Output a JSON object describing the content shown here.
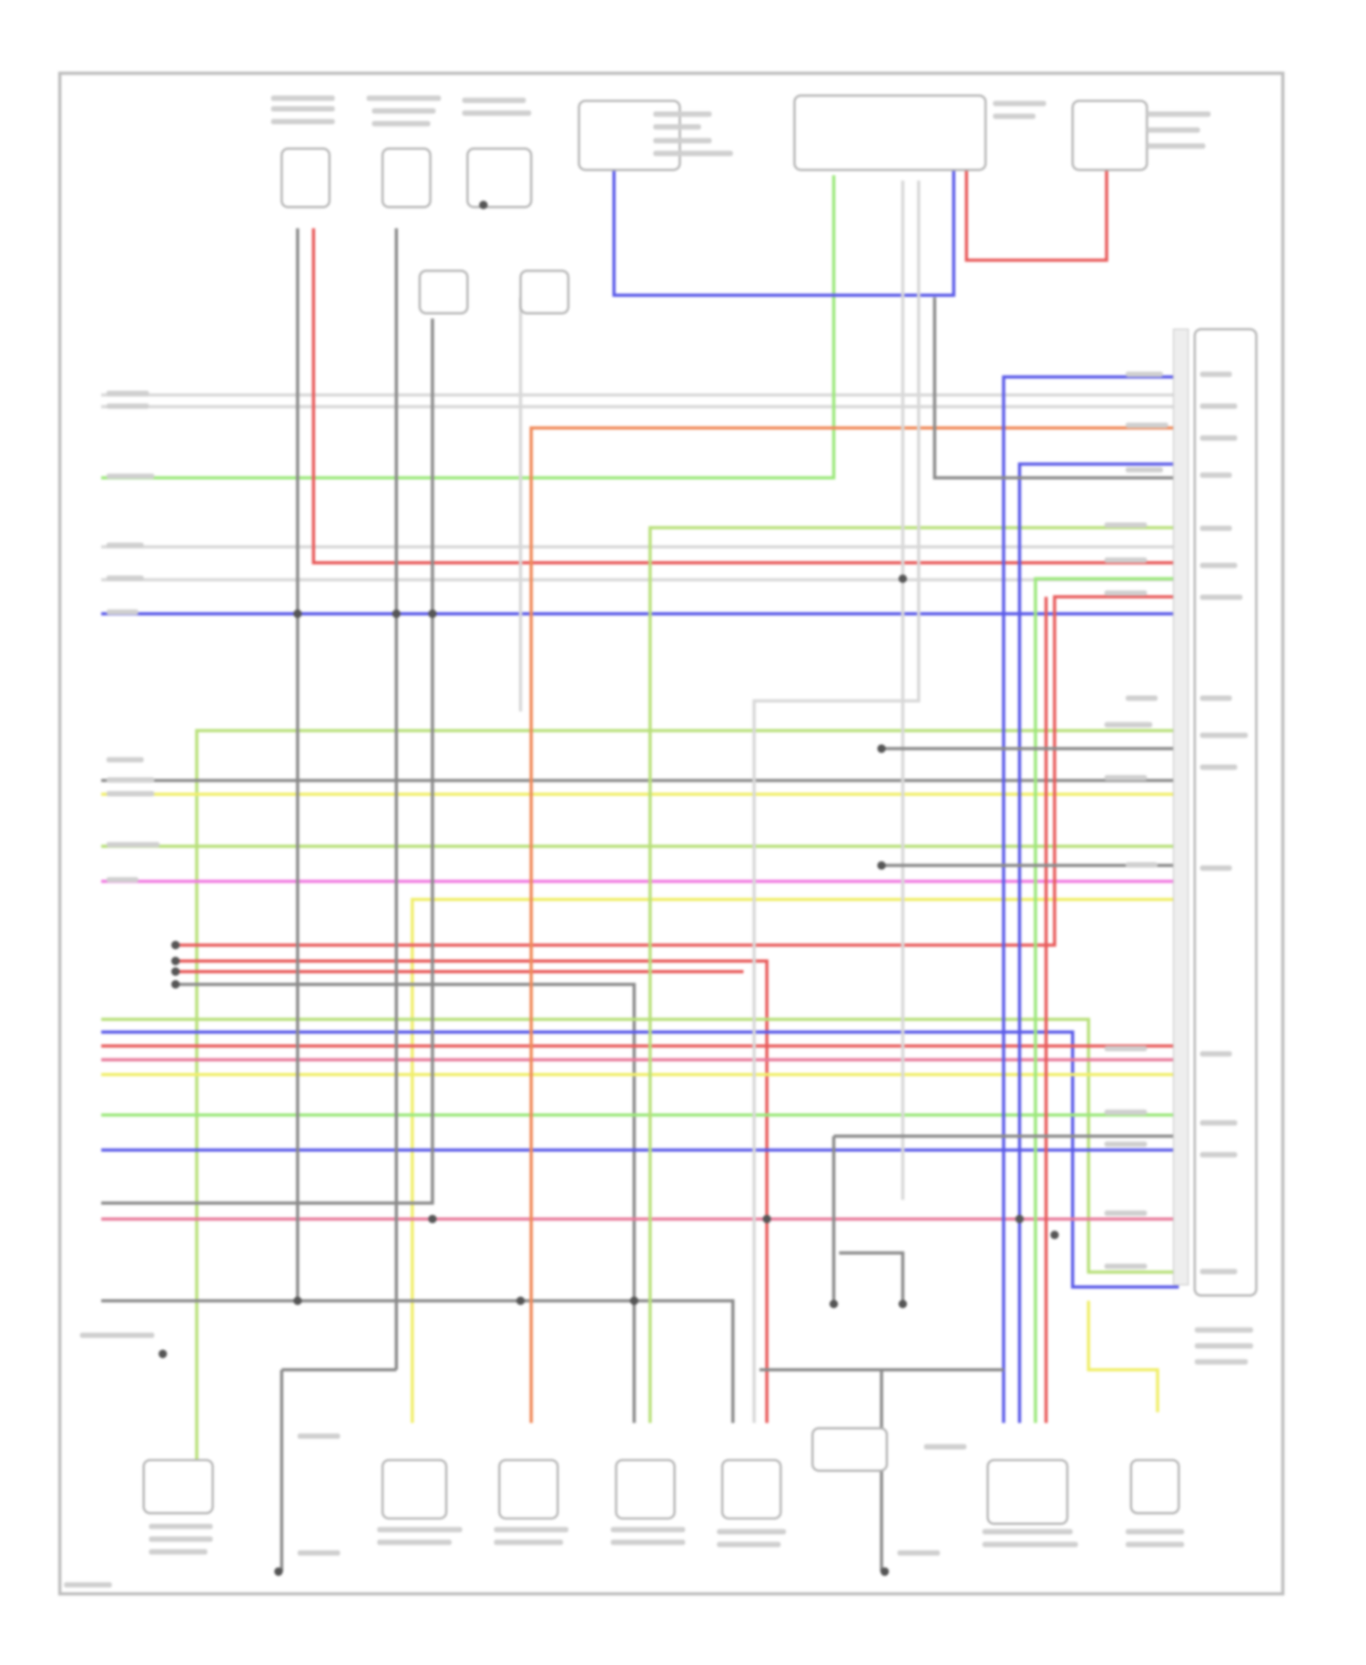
{
  "diagram": {
    "type": "wiring-diagram",
    "frame_color": "#bdbdbd",
    "wire_colors": {
      "white": "#d8d8d8",
      "gray": "#8a8a8a",
      "green": "#9be87a",
      "light_green": "#b8e07a",
      "red": "#e85a5a",
      "orange": "#f08a5a",
      "blue": "#5a5ae8",
      "yellow": "#f0ee6a",
      "magenta": "#f07ae0",
      "pink": "#e87a9a"
    },
    "label_text_color": "#c8c8c8",
    "note": ""
  }
}
